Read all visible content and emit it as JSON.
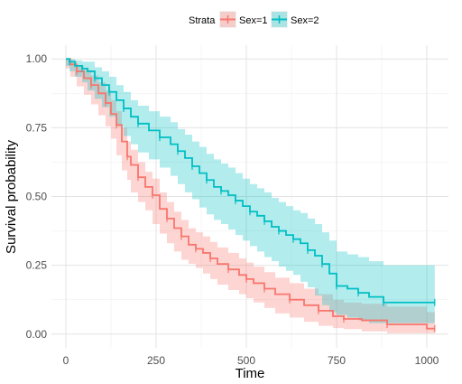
{
  "chart_data": {
    "type": "line",
    "title": "",
    "xlabel": "Time",
    "ylabel": "Survival probability",
    "xlim": [
      0,
      1022
    ],
    "ylim": [
      0,
      1
    ],
    "x_ticks": [
      0,
      250,
      500,
      750,
      1000
    ],
    "x_tick_labels": [
      "0",
      "250",
      "500",
      "750",
      "1000"
    ],
    "y_ticks": [
      0,
      0.25,
      0.5,
      0.75,
      1
    ],
    "y_tick_labels": [
      "0.00",
      "0.25",
      "0.50",
      "0.75",
      "1.00"
    ],
    "grid": true,
    "legend": {
      "title": "Strata",
      "position": "top",
      "entries": [
        "Sex=1",
        "Sex=2"
      ]
    },
    "series": [
      {
        "name": "Sex=1",
        "color": "#F8766D",
        "step": true,
        "censor_marks": true,
        "points": [
          [
            0,
            1.0
          ],
          [
            12,
            0.98
          ],
          [
            30,
            0.955
          ],
          [
            50,
            0.93
          ],
          [
            70,
            0.905
          ],
          [
            90,
            0.875
          ],
          [
            110,
            0.84
          ],
          [
            125,
            0.8
          ],
          [
            140,
            0.76
          ],
          [
            155,
            0.7
          ],
          [
            170,
            0.645
          ],
          [
            180,
            0.615
          ],
          [
            200,
            0.57
          ],
          [
            220,
            0.535
          ],
          [
            240,
            0.505
          ],
          [
            260,
            0.455
          ],
          [
            280,
            0.42
          ],
          [
            300,
            0.385
          ],
          [
            320,
            0.355
          ],
          [
            340,
            0.325
          ],
          [
            360,
            0.31
          ],
          [
            380,
            0.295
          ],
          [
            400,
            0.275
          ],
          [
            420,
            0.255
          ],
          [
            450,
            0.235
          ],
          [
            480,
            0.215
          ],
          [
            500,
            0.2
          ],
          [
            520,
            0.185
          ],
          [
            550,
            0.165
          ],
          [
            580,
            0.145
          ],
          [
            620,
            0.125
          ],
          [
            660,
            0.105
          ],
          [
            700,
            0.085
          ],
          [
            740,
            0.065
          ],
          [
            770,
            0.055
          ],
          [
            820,
            0.05
          ],
          [
            890,
            0.035
          ],
          [
            1000,
            0.02
          ],
          [
            1022,
            0.02
          ]
        ],
        "ci_lower": [
          [
            0,
            1.0
          ],
          [
            12,
            0.965
          ],
          [
            30,
            0.935
          ],
          [
            50,
            0.9
          ],
          [
            70,
            0.87
          ],
          [
            90,
            0.835
          ],
          [
            110,
            0.795
          ],
          [
            125,
            0.755
          ],
          [
            140,
            0.71
          ],
          [
            155,
            0.65
          ],
          [
            170,
            0.595
          ],
          [
            180,
            0.56
          ],
          [
            200,
            0.515
          ],
          [
            220,
            0.48
          ],
          [
            240,
            0.45
          ],
          [
            260,
            0.4
          ],
          [
            280,
            0.365
          ],
          [
            300,
            0.33
          ],
          [
            320,
            0.3
          ],
          [
            340,
            0.27
          ],
          [
            360,
            0.255
          ],
          [
            380,
            0.24
          ],
          [
            400,
            0.22
          ],
          [
            420,
            0.2
          ],
          [
            450,
            0.18
          ],
          [
            480,
            0.16
          ],
          [
            500,
            0.145
          ],
          [
            520,
            0.13
          ],
          [
            550,
            0.115
          ],
          [
            580,
            0.095
          ],
          [
            620,
            0.075
          ],
          [
            660,
            0.06
          ],
          [
            700,
            0.045
          ],
          [
            740,
            0.03
          ],
          [
            770,
            0.022
          ],
          [
            820,
            0.018
          ],
          [
            890,
            0.01
          ],
          [
            1000,
            0.003
          ],
          [
            1022,
            0.003
          ]
        ],
        "ci_upper": [
          [
            0,
            1.0
          ],
          [
            12,
            0.995
          ],
          [
            30,
            0.975
          ],
          [
            50,
            0.96
          ],
          [
            70,
            0.94
          ],
          [
            90,
            0.915
          ],
          [
            110,
            0.885
          ],
          [
            125,
            0.85
          ],
          [
            140,
            0.81
          ],
          [
            155,
            0.75
          ],
          [
            170,
            0.7
          ],
          [
            180,
            0.67
          ],
          [
            200,
            0.625
          ],
          [
            220,
            0.59
          ],
          [
            240,
            0.565
          ],
          [
            260,
            0.515
          ],
          [
            280,
            0.48
          ],
          [
            300,
            0.445
          ],
          [
            320,
            0.415
          ],
          [
            340,
            0.385
          ],
          [
            360,
            0.37
          ],
          [
            380,
            0.355
          ],
          [
            400,
            0.335
          ],
          [
            420,
            0.315
          ],
          [
            450,
            0.295
          ],
          [
            480,
            0.275
          ],
          [
            500,
            0.26
          ],
          [
            520,
            0.245
          ],
          [
            550,
            0.225
          ],
          [
            580,
            0.205
          ],
          [
            620,
            0.185
          ],
          [
            660,
            0.165
          ],
          [
            700,
            0.145
          ],
          [
            740,
            0.125
          ],
          [
            770,
            0.115
          ],
          [
            820,
            0.11
          ],
          [
            890,
            0.1
          ],
          [
            1000,
            0.08
          ],
          [
            1022,
            0.08
          ]
        ]
      },
      {
        "name": "Sex=2",
        "color": "#00BFC4",
        "step": true,
        "censor_marks": true,
        "points": [
          [
            0,
            1.0
          ],
          [
            10,
            0.99
          ],
          [
            25,
            0.975
          ],
          [
            45,
            0.965
          ],
          [
            60,
            0.955
          ],
          [
            80,
            0.93
          ],
          [
            100,
            0.905
          ],
          [
            120,
            0.88
          ],
          [
            140,
            0.85
          ],
          [
            160,
            0.82
          ],
          [
            180,
            0.79
          ],
          [
            200,
            0.765
          ],
          [
            230,
            0.74
          ],
          [
            260,
            0.715
          ],
          [
            290,
            0.69
          ],
          [
            310,
            0.665
          ],
          [
            330,
            0.64
          ],
          [
            350,
            0.61
          ],
          [
            370,
            0.585
          ],
          [
            390,
            0.56
          ],
          [
            410,
            0.535
          ],
          [
            430,
            0.52
          ],
          [
            450,
            0.505
          ],
          [
            470,
            0.485
          ],
          [
            490,
            0.465
          ],
          [
            510,
            0.445
          ],
          [
            530,
            0.43
          ],
          [
            550,
            0.41
          ],
          [
            570,
            0.39
          ],
          [
            590,
            0.375
          ],
          [
            610,
            0.36
          ],
          [
            630,
            0.345
          ],
          [
            650,
            0.33
          ],
          [
            670,
            0.305
          ],
          [
            690,
            0.285
          ],
          [
            710,
            0.255
          ],
          [
            730,
            0.22
          ],
          [
            750,
            0.175
          ],
          [
            780,
            0.165
          ],
          [
            810,
            0.15
          ],
          [
            840,
            0.135
          ],
          [
            880,
            0.115
          ],
          [
            1022,
            0.115
          ]
        ],
        "ci_lower": [
          [
            0,
            1.0
          ],
          [
            10,
            0.975
          ],
          [
            25,
            0.955
          ],
          [
            45,
            0.935
          ],
          [
            60,
            0.915
          ],
          [
            80,
            0.885
          ],
          [
            100,
            0.855
          ],
          [
            120,
            0.825
          ],
          [
            140,
            0.79
          ],
          [
            160,
            0.755
          ],
          [
            180,
            0.72
          ],
          [
            200,
            0.69
          ],
          [
            230,
            0.66
          ],
          [
            260,
            0.635
          ],
          [
            290,
            0.605
          ],
          [
            310,
            0.575
          ],
          [
            330,
            0.545
          ],
          [
            350,
            0.515
          ],
          [
            370,
            0.49
          ],
          [
            390,
            0.46
          ],
          [
            410,
            0.435
          ],
          [
            430,
            0.415
          ],
          [
            450,
            0.4
          ],
          [
            470,
            0.38
          ],
          [
            490,
            0.36
          ],
          [
            510,
            0.34
          ],
          [
            530,
            0.32
          ],
          [
            550,
            0.3
          ],
          [
            570,
            0.28
          ],
          [
            590,
            0.265
          ],
          [
            610,
            0.245
          ],
          [
            630,
            0.23
          ],
          [
            650,
            0.215
          ],
          [
            670,
            0.19
          ],
          [
            690,
            0.17
          ],
          [
            710,
            0.14
          ],
          [
            730,
            0.105
          ],
          [
            750,
            0.08
          ],
          [
            780,
            0.07
          ],
          [
            810,
            0.06
          ],
          [
            840,
            0.05
          ],
          [
            880,
            0.04
          ],
          [
            1022,
            0.04
          ]
        ],
        "ci_upper": [
          [
            0,
            1.0
          ],
          [
            10,
            1.0
          ],
          [
            25,
            0.995
          ],
          [
            45,
            0.99
          ],
          [
            60,
            0.99
          ],
          [
            80,
            0.97
          ],
          [
            100,
            0.955
          ],
          [
            120,
            0.935
          ],
          [
            140,
            0.905
          ],
          [
            160,
            0.88
          ],
          [
            180,
            0.85
          ],
          [
            200,
            0.83
          ],
          [
            230,
            0.81
          ],
          [
            260,
            0.79
          ],
          [
            290,
            0.77
          ],
          [
            310,
            0.745
          ],
          [
            330,
            0.725
          ],
          [
            350,
            0.7
          ],
          [
            370,
            0.68
          ],
          [
            390,
            0.655
          ],
          [
            410,
            0.635
          ],
          [
            430,
            0.62
          ],
          [
            450,
            0.605
          ],
          [
            470,
            0.585
          ],
          [
            490,
            0.565
          ],
          [
            510,
            0.545
          ],
          [
            530,
            0.53
          ],
          [
            550,
            0.515
          ],
          [
            570,
            0.495
          ],
          [
            590,
            0.48
          ],
          [
            610,
            0.465
          ],
          [
            630,
            0.45
          ],
          [
            650,
            0.44
          ],
          [
            670,
            0.42
          ],
          [
            690,
            0.4
          ],
          [
            710,
            0.37
          ],
          [
            730,
            0.34
          ],
          [
            750,
            0.3
          ],
          [
            780,
            0.29
          ],
          [
            810,
            0.28
          ],
          [
            840,
            0.265
          ],
          [
            880,
            0.25
          ],
          [
            1022,
            0.25
          ]
        ]
      }
    ]
  }
}
